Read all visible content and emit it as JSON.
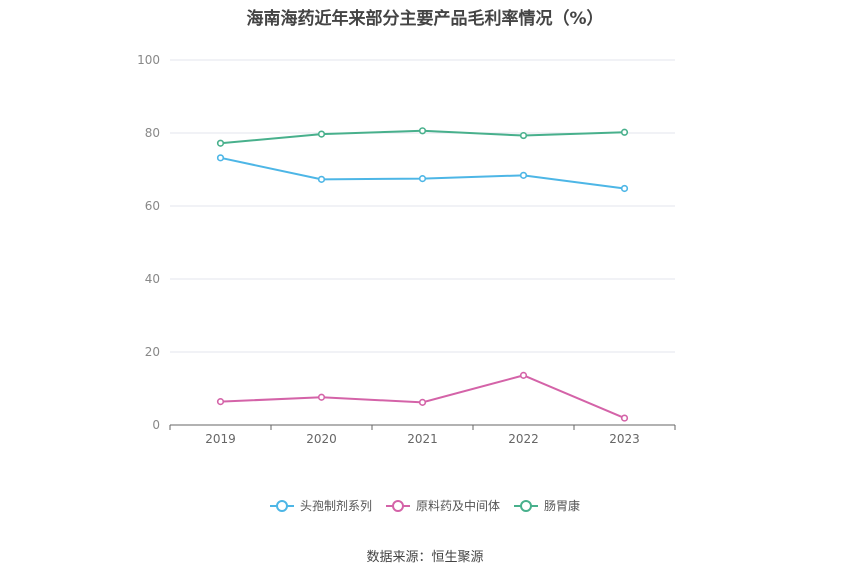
{
  "title": "海南海药近年来部分主要产品毛利率情况（%）",
  "source": "数据来源：恒生聚源",
  "chart_data": {
    "type": "line",
    "title": "海南海药近年来部分主要产品毛利率情况（%）",
    "categories": [
      "2019",
      "2020",
      "2021",
      "2022",
      "2023"
    ],
    "y_ticks": [
      "0",
      "20",
      "40",
      "60",
      "80",
      "100"
    ],
    "ylim": [
      0,
      100
    ],
    "grid": true,
    "legend_position": "bottom",
    "series": [
      {
        "name": "头孢制剂系列",
        "color": "#4db6e6",
        "values": [
          73.2,
          67.3,
          67.5,
          68.4,
          64.8
        ]
      },
      {
        "name": "原料药及中间体",
        "color": "#d463a8",
        "values": [
          6.4,
          7.6,
          6.2,
          13.6,
          1.9
        ]
      },
      {
        "name": "肠胃康",
        "color": "#48b08c",
        "values": [
          77.2,
          79.7,
          80.6,
          79.3,
          80.2
        ]
      }
    ]
  }
}
